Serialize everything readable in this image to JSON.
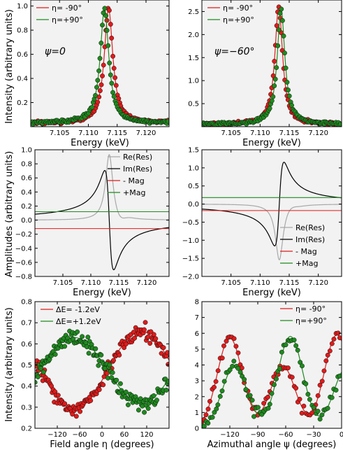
{
  "figure": {
    "ylabels": {
      "top": "Intensity (arbitrary units)",
      "middle": "Amplitudes (arbitrary units)",
      "bottom": "Intensity (arbitrary units)"
    }
  },
  "colors": {
    "red": "#e01b1b",
    "green": "#1f8a1f",
    "gray": "#a8a8a8",
    "black": "#000000",
    "panel_bg": "#f2f2f2"
  },
  "chart_data": [
    {
      "id": "top-left",
      "type": "scatter",
      "xlabel": "Energy (keV)",
      "ylabel": "Intensity (arbitrary units)",
      "annotation": "ψ=0",
      "xlim": [
        7.1,
        7.124
      ],
      "ylim": [
        0,
        1.05
      ],
      "xticks": [
        7.105,
        7.11,
        7.115,
        7.12
      ],
      "xticklabels": [
        "7.105",
        "7.110",
        "7.115",
        "7.120"
      ],
      "yticks": [
        0.2,
        0.4,
        0.6,
        0.8,
        1.0
      ],
      "yticklabels": [
        "0.2",
        "0.4",
        "0.6",
        "0.8",
        "1.0"
      ],
      "legend": "upper-left",
      "series": [
        {
          "name": "η= -90°",
          "color": "red",
          "kind": "fit+points",
          "model": "lorentz",
          "center": 7.1135,
          "amplitude": 0.98,
          "width": 0.0009,
          "baseline": 0.03
        },
        {
          "name": "η=+90°",
          "color": "green",
          "kind": "fit+points",
          "model": "lorentz",
          "center": 7.1128,
          "amplitude": 0.98,
          "width": 0.0009,
          "baseline": 0.03
        }
      ]
    },
    {
      "id": "top-right",
      "type": "scatter",
      "xlabel": "Energy (keV)",
      "ylabel": "",
      "annotation": "ψ=−60°",
      "xlim": [
        7.1,
        7.124
      ],
      "ylim": [
        0,
        2.75
      ],
      "xticks": [
        7.105,
        7.11,
        7.115,
        7.12
      ],
      "xticklabels": [
        "7.105",
        "7.110",
        "7.115",
        "7.120"
      ],
      "yticks": [
        0.5,
        1.0,
        1.5,
        2.0,
        2.5
      ],
      "yticklabels": [
        "0.5",
        "1.0",
        "1.5",
        "2.0",
        "2.5"
      ],
      "legend": "upper-left",
      "series": [
        {
          "name": "η= -90°",
          "color": "red",
          "kind": "fit+points",
          "model": "lorentz",
          "center": 7.1132,
          "amplitude": 2.62,
          "width": 0.0008,
          "baseline": 0.05
        },
        {
          "name": "η=+90°",
          "color": "green",
          "kind": "fit+points",
          "model": "lorentz",
          "center": 7.1136,
          "amplitude": 2.55,
          "width": 0.0008,
          "baseline": 0.05
        }
      ]
    },
    {
      "id": "middle-left",
      "type": "line",
      "xlabel": "Energy (keV)",
      "ylabel": "Amplitudes (arbitrary units)",
      "xlim": [
        7.1,
        7.124
      ],
      "ylim": [
        -0.8,
        1.0
      ],
      "xticks": [
        7.105,
        7.11,
        7.115,
        7.12
      ],
      "xticklabels": [
        "7.105",
        "7.110",
        "7.115",
        "7.120"
      ],
      "yticks": [
        -0.8,
        -0.6,
        -0.4,
        -0.2,
        0.0,
        0.2,
        0.4,
        0.6,
        0.8,
        1.0
      ],
      "yticklabels": [
        "−0.8",
        "−0.6",
        "−0.4",
        "−0.2",
        "0.0",
        "0.2",
        "0.4",
        "0.6",
        "0.8",
        "1.0"
      ],
      "legend": "upper-right",
      "series": [
        {
          "name": "Re(Res)",
          "color": "gray",
          "kind": "line",
          "model": "re",
          "center": 7.1133,
          "amplitude": 0.94,
          "width": 0.0008
        },
        {
          "name": "Im(Res)",
          "color": "black",
          "kind": "line",
          "model": "im",
          "center": 7.1133,
          "amplitude": 0.72,
          "width": 0.0008
        },
        {
          "name": "- Mag",
          "color": "red",
          "kind": "hline",
          "value": -0.12
        },
        {
          "name": "+Mag",
          "color": "green",
          "kind": "hline",
          "value": 0.12
        }
      ]
    },
    {
      "id": "middle-right",
      "type": "line",
      "xlabel": "Energy (keV)",
      "ylabel": "",
      "xlim": [
        7.1,
        7.124
      ],
      "ylim": [
        -2.0,
        1.5
      ],
      "xticks": [
        7.105,
        7.11,
        7.115,
        7.12
      ],
      "xticklabels": [
        "7.105",
        "7.110",
        "7.115",
        "7.120"
      ],
      "yticks": [
        -2.0,
        -1.5,
        -1.0,
        -0.5,
        0.0,
        0.5,
        1.0,
        1.5
      ],
      "yticklabels": [
        "−2.0",
        "−1.5",
        "−1.0",
        "−0.5",
        "0.0",
        "0.5",
        "1.0",
        "1.5"
      ],
      "legend": "lower-right",
      "series": [
        {
          "name": "Re(Res)",
          "color": "gray",
          "kind": "line",
          "model": "re",
          "center": 7.1133,
          "amplitude": -1.55,
          "width": 0.0008
        },
        {
          "name": "Im(Res)",
          "color": "black",
          "kind": "line",
          "model": "im",
          "center": 7.1133,
          "amplitude": -1.18,
          "width": 0.0008
        },
        {
          "name": "- Mag",
          "color": "red",
          "kind": "hline",
          "value": -0.18
        },
        {
          "name": "+Mag",
          "color": "green",
          "kind": "hline",
          "value": 0.18
        }
      ]
    },
    {
      "id": "bottom-left",
      "type": "scatter",
      "xlabel": "Field angle η (degrees)",
      "ylabel": "Intensity (arbitrary units)",
      "xlim": [
        -180,
        180
      ],
      "ylim": [
        0.2,
        0.8
      ],
      "xticks": [
        -120,
        -60,
        0,
        60,
        120
      ],
      "xticklabels": [
        "−120",
        "−60",
        "0",
        "60",
        "120"
      ],
      "yticks": [
        0.2,
        0.3,
        0.4,
        0.5,
        0.6,
        0.7,
        0.8
      ],
      "yticklabels": [
        "0.2",
        "0.3",
        "0.4",
        "0.5",
        "0.6",
        "0.7",
        "0.8"
      ],
      "legend": "upper-left",
      "series": [
        {
          "name": "ΔE= -1.2eV",
          "color": "red",
          "kind": "fit+points",
          "model": "cos",
          "mean": 0.475,
          "amp": 0.185,
          "phase": 105
        },
        {
          "name": "ΔE=+1.2eV",
          "color": "green",
          "kind": "fit+points",
          "model": "cos",
          "mean": 0.475,
          "amp": 0.155,
          "phase": -75
        }
      ]
    },
    {
      "id": "bottom-right",
      "type": "scatter",
      "xlabel": "Azimuthal angle ψ (degrees)",
      "ylabel": "",
      "xlim": [
        -150,
        0
      ],
      "ylim": [
        0,
        8
      ],
      "xticks": [
        -120,
        -90,
        -60,
        -30,
        0
      ],
      "xticklabels": [
        "−120",
        "−90",
        "−60",
        "−30",
        "0"
      ],
      "yticks": [
        0,
        1,
        2,
        3,
        4,
        5,
        6,
        7,
        8
      ],
      "yticklabels": [
        "0",
        "1",
        "2",
        "3",
        "4",
        "5",
        "6",
        "7",
        "8"
      ],
      "legend": "upper-right",
      "series": [
        {
          "name": "η= -90°",
          "color": "red",
          "kind": "fit+points",
          "model": "azi",
          "peaks": [
            [
              -120,
              5.7
            ],
            [
              -63,
              3.9
            ],
            [
              -5,
              5.9
            ]
          ]
        },
        {
          "name": "η=+90°",
          "color": "green",
          "kind": "fit+points",
          "model": "azi",
          "peaks": [
            [
              -115,
              3.9
            ],
            [
              -55,
              5.8
            ],
            [
              5,
              3.8
            ]
          ]
        }
      ]
    }
  ]
}
